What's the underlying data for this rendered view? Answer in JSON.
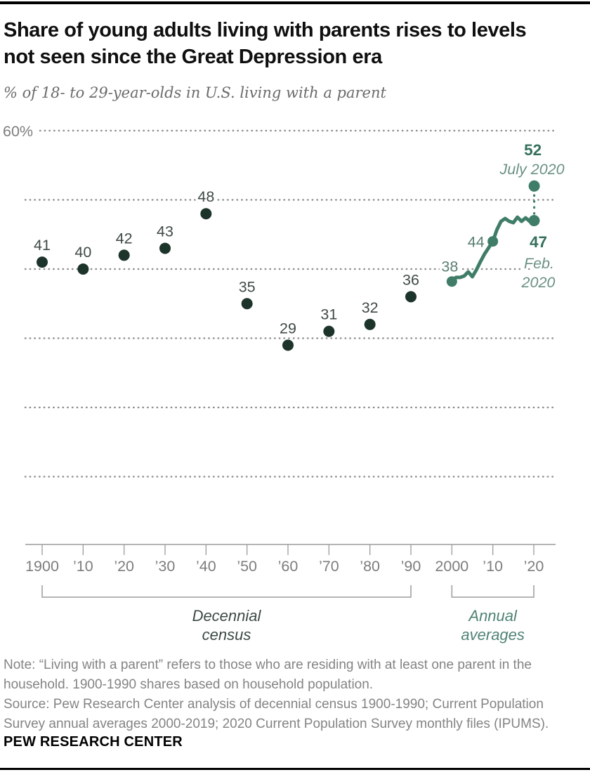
{
  "header": {
    "title_line1": "Share of young adults living with parents rises to levels",
    "title_line2": "not seen since the Great Depression era",
    "subtitle": "% of 18- to 29-year-olds in U.S. living with a parent"
  },
  "footer": {
    "note_lines": [
      "Note: “Living with a parent” refers to those who are residing with at least one parent in the",
      "household. 1900-1990 shares based on household population."
    ],
    "source_lines": [
      "Source: Pew Research Center analysis of decennial census 1900-1990; Current Population",
      "Survey annual averages 2000-2019; 2020 Current Population Survey monthly files (IPUMS)."
    ],
    "brand": "PEW RESEARCH CENTER"
  },
  "chart_data": {
    "type": "scatter+line",
    "title": "Share of young adults living with parents rises to levels not seen since the Great Depression era",
    "ylabel": "% of 18- to 29-year-olds in U.S. living with a parent",
    "ylim": [
      0,
      60
    ],
    "grid": true,
    "grid_color": "#8f8f8f",
    "axis_color": "#9b9b9b",
    "tick_label_color": "#7d7d7d",
    "y_axis": {
      "top_label": "60%",
      "gridlines": [
        60,
        50,
        40,
        30,
        20,
        10
      ]
    },
    "x_axis": {
      "ticks": [
        {
          "year": 1900,
          "label": "1900"
        },
        {
          "year": 1910,
          "label": "’10"
        },
        {
          "year": 1920,
          "label": "’20"
        },
        {
          "year": 1930,
          "label": "’30"
        },
        {
          "year": 1940,
          "label": "’40"
        },
        {
          "year": 1950,
          "label": "’50"
        },
        {
          "year": 1960,
          "label": "’60"
        },
        {
          "year": 1970,
          "label": "’70"
        },
        {
          "year": 1980,
          "label": "’80"
        },
        {
          "year": 1990,
          "label": "’90"
        },
        {
          "year": 2000,
          "label": "2000"
        },
        {
          "year": 2010,
          "label": "’10"
        },
        {
          "year": 2020,
          "label": "’20"
        }
      ],
      "groups": [
        {
          "lines": [
            "Decennial",
            "census"
          ],
          "from": 1900,
          "to": 1990,
          "color": "#3c4a43"
        },
        {
          "lines": [
            "Annual",
            "averages"
          ],
          "from": 2000,
          "to": 2020,
          "color": "#4f8374"
        }
      ]
    },
    "census_series": {
      "name": "Decennial census",
      "color": "#1d342b",
      "label_color": "#3f4a45",
      "points": [
        [
          1900,
          41
        ],
        [
          1910,
          40
        ],
        [
          1920,
          42
        ],
        [
          1930,
          43
        ],
        [
          1940,
          48
        ],
        [
          1950,
          35
        ],
        [
          1960,
          29
        ],
        [
          1970,
          31
        ],
        [
          1980,
          32
        ],
        [
          1990,
          36
        ]
      ]
    },
    "annual_series": {
      "name": "Annual averages",
      "color": "#3f7d69",
      "points": [
        [
          2000,
          38.2
        ],
        [
          2001,
          38.8
        ],
        [
          2002,
          38.8
        ],
        [
          2003,
          39.0
        ],
        [
          2004,
          39.6
        ],
        [
          2005,
          38.9
        ],
        [
          2006,
          39.9
        ],
        [
          2007,
          41.1
        ],
        [
          2008,
          42.2
        ],
        [
          2009,
          43.1
        ],
        [
          2010,
          44.0
        ],
        [
          2011,
          45.7
        ],
        [
          2012,
          46.9
        ],
        [
          2013,
          47.3
        ],
        [
          2014,
          46.9
        ],
        [
          2015,
          46.7
        ],
        [
          2016,
          47.5
        ],
        [
          2017,
          46.9
        ],
        [
          2018,
          47.4
        ],
        [
          2019,
          46.9
        ],
        [
          2020.08,
          47.0
        ]
      ]
    },
    "annual_markers": [
      {
        "year": 2000,
        "value": 38.2,
        "label": "38"
      },
      {
        "year": 2010,
        "value": 44,
        "label": "44"
      }
    ],
    "marker_label_color": "#597f72",
    "annotations": {
      "feb": {
        "year": 2020.08,
        "value": 47,
        "value_label": "47",
        "date_lines": [
          "Feb.",
          "2020"
        ],
        "bold_color": "#35705c",
        "date_color": "#6b9183"
      },
      "july": {
        "year": 2020.1,
        "value": 52,
        "value_label": "52",
        "date_line": "July 2020",
        "bold_color": "#35705c",
        "date_color": "#6b9183"
      }
    }
  }
}
